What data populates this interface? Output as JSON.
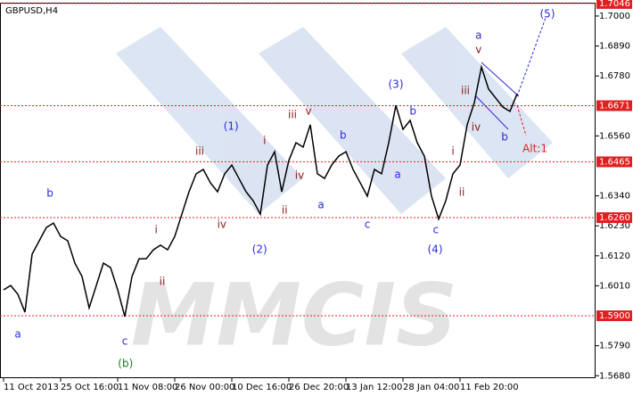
{
  "chart_data": {
    "type": "line",
    "title": "GBPUSD,H4",
    "watermark": "MMCIS",
    "color": "#000000",
    "x": [
      0,
      1,
      2,
      3,
      4,
      5,
      6,
      7,
      8,
      9,
      10,
      11,
      12,
      13,
      14,
      15,
      16,
      17,
      18,
      19,
      20,
      21,
      22,
      23,
      24,
      25,
      26,
      27,
      28,
      29,
      30,
      31,
      32,
      33,
      34,
      35,
      36,
      37,
      38,
      39,
      40,
      41,
      42,
      43,
      44,
      45,
      46,
      47,
      48,
      49,
      50,
      51,
      52,
      53,
      54,
      55,
      56,
      57,
      58,
      59,
      60,
      61,
      62,
      63,
      64,
      65,
      66,
      67,
      68,
      69,
      70,
      71,
      72
    ],
    "values": [
      1.5995,
      1.6011,
      1.5979,
      1.5913,
      1.6126,
      1.6175,
      1.6224,
      1.624,
      1.6191,
      1.6175,
      1.6093,
      1.6044,
      1.5929,
      1.6011,
      1.6093,
      1.6077,
      1.5995,
      1.5897,
      1.6044,
      1.6109,
      1.6109,
      1.6142,
      1.6159,
      1.6142,
      1.6191,
      1.6273,
      1.6355,
      1.6421,
      1.6437,
      1.6388,
      1.6355,
      1.6421,
      1.6453,
      1.6404,
      1.6355,
      1.6322,
      1.6273,
      1.6453,
      1.6502,
      1.6355,
      1.647,
      1.6535,
      1.6519,
      1.6601,
      1.6421,
      1.6404,
      1.6453,
      1.6486,
      1.6502,
      1.6437,
      1.6388,
      1.6339,
      1.6437,
      1.6421,
      1.6535,
      1.6672,
      1.6584,
      1.6617,
      1.6535,
      1.6486,
      1.6339,
      1.6255,
      1.6322,
      1.6421,
      1.6453,
      1.6601,
      1.6682,
      1.6813,
      1.6732,
      1.6699,
      1.6666,
      1.665,
      1.6715
    ],
    "xlim": [
      -0.5,
      83
    ],
    "xticks": [
      {
        "value": 0,
        "label": "11 Oct 2013"
      },
      {
        "value": 8,
        "label": "25 Oct 16:00"
      },
      {
        "value": 16,
        "label": "11 Nov 08:00"
      },
      {
        "value": 24,
        "label": "26 Nov 00:00"
      },
      {
        "value": 32,
        "label": "10 Dec 16:00"
      },
      {
        "value": 40,
        "label": "26 Dec 20:00"
      },
      {
        "value": 48,
        "label": "13 Jan 12:00"
      },
      {
        "value": 56,
        "label": "28 Jan 04:00"
      },
      {
        "value": 64,
        "label": "11 Feb 20:00"
      }
    ],
    "ylim": [
      1.5671,
      1.7049
    ],
    "yticks": [
      {
        "value": 1.568,
        "label": "1.5680"
      },
      {
        "value": 1.579,
        "label": "1.5790"
      },
      {
        "value": 1.601,
        "label": "1.6010"
      },
      {
        "value": 1.612,
        "label": "1.6120"
      },
      {
        "value": 1.623,
        "label": "1.6230"
      },
      {
        "value": 1.634,
        "label": "1.6340"
      },
      {
        "value": 1.656,
        "label": "1.6560"
      },
      {
        "value": 1.678,
        "label": "1.6780"
      },
      {
        "value": 1.689,
        "label": "1.6890"
      },
      {
        "value": 1.7,
        "label": "1.7000"
      }
    ],
    "levels": [
      {
        "value": 1.7046,
        "label": "1.7046"
      },
      {
        "value": 1.6671,
        "label": "1.6671"
      },
      {
        "value": 1.6465,
        "label": "1.6465"
      },
      {
        "value": 1.626,
        "label": "1.6260"
      },
      {
        "value": 1.59,
        "label": "1.5900"
      }
    ],
    "level_color": "#e02020",
    "annotations": [
      {
        "text": "a",
        "x": 2,
        "y": 1.5831,
        "color": "#2a2adf"
      },
      {
        "text": "b",
        "x": 6.5,
        "y": 1.6348,
        "color": "#2a2adf"
      },
      {
        "text": "c",
        "x": 17,
        "y": 1.5805,
        "color": "#2a2adf"
      },
      {
        "text": "(b)",
        "x": 17.1,
        "y": 1.5723,
        "color": "#1a7a1a"
      },
      {
        "text": "i",
        "x": 21.4,
        "y": 1.6214,
        "color": "#8b1a1a"
      },
      {
        "text": "ii",
        "x": 22.25,
        "y": 1.6024,
        "color": "#8b1a1a"
      },
      {
        "text": "iii",
        "x": 27.5,
        "y": 1.6502,
        "color": "#8b1a1a"
      },
      {
        "text": "iv",
        "x": 30.6,
        "y": 1.6234,
        "color": "#8b1a1a"
      },
      {
        "text": "(1)",
        "x": 31.9,
        "y": 1.6594,
        "color": "#2a2adf"
      },
      {
        "text": "(2)",
        "x": 35.9,
        "y": 1.6142,
        "color": "#2a2adf"
      },
      {
        "text": "i",
        "x": 36.6,
        "y": 1.6542,
        "color": "#8b1a1a"
      },
      {
        "text": "ii",
        "x": 39.4,
        "y": 1.6286,
        "color": "#8b1a1a"
      },
      {
        "text": "iii",
        "x": 40.5,
        "y": 1.6637,
        "color": "#8b1a1a"
      },
      {
        "text": "iv",
        "x": 41.5,
        "y": 1.6414,
        "color": "#8b1a1a"
      },
      {
        "text": "v",
        "x": 42.75,
        "y": 1.665,
        "color": "#8b1a1a"
      },
      {
        "text": "a",
        "x": 44.5,
        "y": 1.6306,
        "color": "#2a2adf"
      },
      {
        "text": "b",
        "x": 47.6,
        "y": 1.6561,
        "color": "#2a2adf"
      },
      {
        "text": "c",
        "x": 51,
        "y": 1.6234,
        "color": "#2a2adf"
      },
      {
        "text": "(3)",
        "x": 55,
        "y": 1.6748,
        "color": "#2a2adf"
      },
      {
        "text": "a",
        "x": 55.25,
        "y": 1.6417,
        "color": "#2a2adf"
      },
      {
        "text": "b",
        "x": 57.4,
        "y": 1.665,
        "color": "#2a2adf"
      },
      {
        "text": "c",
        "x": 60.6,
        "y": 1.6214,
        "color": "#2a2adf"
      },
      {
        "text": "(4)",
        "x": 60.5,
        "y": 1.6142,
        "color": "#2a2adf"
      },
      {
        "text": "i",
        "x": 63,
        "y": 1.6502,
        "color": "#8b1a1a"
      },
      {
        "text": "ii",
        "x": 64.25,
        "y": 1.6352,
        "color": "#8b1a1a"
      },
      {
        "text": "iii",
        "x": 64.75,
        "y": 1.6725,
        "color": "#8b1a1a"
      },
      {
        "text": "iv",
        "x": 66.25,
        "y": 1.6591,
        "color": "#8b1a1a"
      },
      {
        "text": "v",
        "x": 66.6,
        "y": 1.6876,
        "color": "#8b1a1a"
      },
      {
        "text": "a",
        "x": 66.6,
        "y": 1.6928,
        "color": "#2a2adf"
      },
      {
        "text": "b",
        "x": 70.25,
        "y": 1.6555,
        "color": "#2a2adf"
      },
      {
        "text": "(5)",
        "x": 76.25,
        "y": 1.7007,
        "color": "#2a2adf"
      },
      {
        "text": "Alt:1",
        "x": 74.5,
        "y": 1.6512,
        "color": "#e02020"
      }
    ]
  }
}
